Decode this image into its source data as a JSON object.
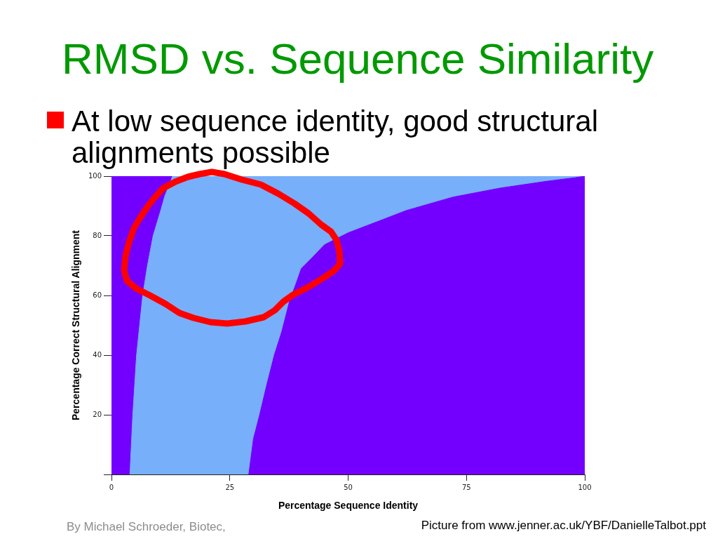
{
  "chart_data": {
    "type": "area",
    "title": "RMSD vs. Sequence Similarity",
    "subtitle": "At low sequence identity, good structural alignments possible",
    "xlabel": "Percentage Sequence Identity",
    "ylabel": "Percentage Correct Structural Alignment",
    "series": [
      {
        "color": "#7300ff",
        "x": [
          0,
          12.9
        ],
        "values": [
          100,
          100
        ]
      },
      {
        "color": "#78affa",
        "x": [
          3.9,
          4.5,
          5.3,
          6.6,
          7.6,
          8.8,
          10.5,
          11.3,
          12.2,
          12.9,
          100
        ],
        "values": [
          0,
          20,
          40,
          60,
          70,
          80,
          89,
          93.5,
          97,
          100,
          100
        ]
      },
      {
        "color": "#7300ff",
        "x": [
          29,
          30,
          31.3,
          32.8,
          34.4,
          36,
          37.6,
          39,
          40.1,
          42.6,
          45,
          47.5,
          50,
          57.4,
          62.3,
          72.2,
          82.1,
          92,
          98,
          100
        ],
        "values": [
          0,
          12,
          20,
          30,
          40,
          48,
          58,
          64,
          69,
          73,
          77,
          79,
          81,
          85.5,
          88.5,
          93,
          96,
          98.3,
          99.5,
          100
        ]
      }
    ],
    "xlim": [
      0,
      100
    ],
    "ylim": [
      0,
      100
    ],
    "xticks": [
      0,
      25,
      50,
      75,
      100
    ],
    "yticks": [
      {
        "value": 0,
        "label": null
      },
      20,
      40,
      60,
      80,
      100
    ],
    "annotations": [
      "By Michael Schroeder, Biotec,",
      "Picture from www.jenner.ac.uk/YBF/DanielleTalbot.ppt"
    ]
  }
}
